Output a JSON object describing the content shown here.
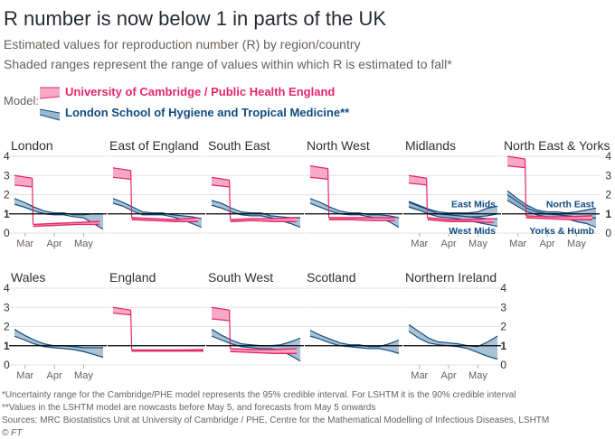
{
  "header": {
    "title": "R number is now below 1 in parts of the UK",
    "subtitle1": "Estimated values for reproduction number (R) by region/country",
    "subtitle2": "Shaded ranges represent the range of values within which R is estimated to fall*"
  },
  "legend": {
    "label": "Model:",
    "items": [
      {
        "name": "University of Cambridge / Public Health England",
        "color": "#e5266b",
        "fill": "#f7a8c4"
      },
      {
        "name": "London School of Hygiene and Tropical Medicine**",
        "color": "#0f4c81",
        "fill": "#9cb7cc"
      }
    ]
  },
  "chart_data": {
    "type": "line",
    "y_ticks": [
      0,
      1,
      2,
      3,
      4
    ],
    "ylim": [
      0,
      4
    ],
    "reference_line": 1,
    "x_ticks": [
      "Mar",
      "Apr",
      "May"
    ],
    "panels": [
      {
        "name": "London",
        "lshtm": [
          [
            1.5,
            1.8
          ],
          [
            1.35,
            1.6
          ],
          [
            1.15,
            1.35
          ],
          [
            1.0,
            1.15
          ],
          [
            0.95,
            1.05
          ],
          [
            0.95,
            1.05
          ],
          [
            0.85,
            0.95
          ],
          [
            0.8,
            0.95
          ],
          [
            0.5,
            1.0
          ],
          [
            0.2,
            1.0
          ]
        ],
        "cam": {
          "pre": [
            2.5,
            3.0
          ],
          "post": [
            [
              0.35,
              0.45
            ],
            [
              0.4,
              0.5
            ],
            [
              0.45,
              0.55
            ],
            [
              0.45,
              0.6
            ]
          ]
        }
      },
      {
        "name": "East of England",
        "lshtm": [
          [
            1.55,
            1.8
          ],
          [
            1.4,
            1.6
          ],
          [
            1.15,
            1.35
          ],
          [
            0.95,
            1.1
          ],
          [
            0.95,
            1.05
          ],
          [
            0.95,
            1.05
          ],
          [
            0.85,
            0.95
          ],
          [
            0.7,
            0.9
          ],
          [
            0.5,
            0.85
          ],
          [
            0.3,
            0.75
          ]
        ],
        "cam": {
          "pre": [
            2.9,
            3.4
          ],
          "post": [
            [
              0.7,
              0.8
            ],
            [
              0.65,
              0.75
            ],
            [
              0.6,
              0.7
            ],
            [
              0.6,
              0.8
            ]
          ]
        }
      },
      {
        "name": "South East",
        "lshtm": [
          [
            1.45,
            1.7
          ],
          [
            1.3,
            1.55
          ],
          [
            1.1,
            1.3
          ],
          [
            0.95,
            1.1
          ],
          [
            0.9,
            1.05
          ],
          [
            0.9,
            1.05
          ],
          [
            0.8,
            0.9
          ],
          [
            0.65,
            0.85
          ],
          [
            0.5,
            0.8
          ],
          [
            0.3,
            0.8
          ]
        ],
        "cam": {
          "pre": [
            2.5,
            2.9
          ],
          "post": [
            [
              0.6,
              0.7
            ],
            [
              0.65,
              0.75
            ],
            [
              0.6,
              0.75
            ],
            [
              0.6,
              0.8
            ]
          ]
        }
      },
      {
        "name": "North West",
        "lshtm": [
          [
            1.55,
            1.8
          ],
          [
            1.35,
            1.6
          ],
          [
            1.15,
            1.35
          ],
          [
            1.0,
            1.15
          ],
          [
            0.95,
            1.05
          ],
          [
            0.95,
            1.05
          ],
          [
            0.85,
            0.95
          ],
          [
            0.75,
            0.95
          ],
          [
            0.6,
            0.9
          ],
          [
            0.3,
            0.8
          ]
        ],
        "cam": {
          "pre": [
            2.9,
            3.5
          ],
          "post": [
            [
              0.7,
              0.8
            ],
            [
              0.7,
              0.8
            ],
            [
              0.65,
              0.8
            ],
            [
              0.65,
              0.8
            ]
          ]
        }
      },
      {
        "name": "Midlands",
        "lshtm": [
          [
            1.4,
            1.65
          ],
          [
            1.25,
            1.45
          ],
          [
            1.05,
            1.25
          ],
          [
            0.95,
            1.1
          ],
          [
            0.9,
            1.05
          ],
          [
            0.9,
            1.05
          ],
          [
            0.85,
            1.05
          ],
          [
            0.85,
            1.1
          ],
          [
            0.9,
            1.3
          ],
          [
            1.0,
            1.4
          ]
        ],
        "lshtm2": [
          [
            1.35,
            1.6
          ],
          [
            1.2,
            1.4
          ],
          [
            1.0,
            1.2
          ],
          [
            0.85,
            1.0
          ],
          [
            0.8,
            0.95
          ],
          [
            0.75,
            0.9
          ],
          [
            0.65,
            0.85
          ],
          [
            0.55,
            0.8
          ],
          [
            0.45,
            0.75
          ],
          [
            0.35,
            0.75
          ]
        ],
        "cam": {
          "pre": [
            2.6,
            3.0
          ],
          "post": [
            [
              0.7,
              0.8
            ],
            [
              0.6,
              0.7
            ],
            [
              0.6,
              0.7
            ],
            [
              0.55,
              0.75
            ]
          ]
        },
        "annotations": [
          "East Mids",
          "West Mids"
        ]
      },
      {
        "name": "North East & Yorks",
        "lshtm": [
          [
            1.8,
            2.2
          ],
          [
            1.5,
            1.8
          ],
          [
            1.2,
            1.45
          ],
          [
            1.05,
            1.2
          ],
          [
            0.95,
            1.1
          ],
          [
            0.95,
            1.1
          ],
          [
            0.9,
            1.05
          ],
          [
            0.85,
            1.1
          ],
          [
            0.8,
            1.2
          ],
          [
            0.7,
            1.3
          ]
        ],
        "lshtm2": [
          [
            1.7,
            2.0
          ],
          [
            1.4,
            1.65
          ],
          [
            1.1,
            1.3
          ],
          [
            0.95,
            1.1
          ],
          [
            0.85,
            1.0
          ],
          [
            0.8,
            0.95
          ],
          [
            0.75,
            0.9
          ],
          [
            0.6,
            0.85
          ],
          [
            0.5,
            0.8
          ],
          [
            0.3,
            0.8
          ]
        ],
        "cam": {
          "pre": [
            3.5,
            4.0
          ],
          "post": [
            [
              0.8,
              0.9
            ],
            [
              0.75,
              0.85
            ],
            [
              0.7,
              0.85
            ],
            [
              0.7,
              0.9
            ]
          ]
        },
        "annotations": [
          "North East",
          "Yorks & Humb"
        ]
      },
      {
        "name": "Wales",
        "lshtm": [
          [
            1.5,
            1.85
          ],
          [
            1.3,
            1.55
          ],
          [
            1.1,
            1.3
          ],
          [
            0.95,
            1.1
          ],
          [
            0.9,
            1.0
          ],
          [
            0.85,
            1.0
          ],
          [
            0.8,
            0.95
          ],
          [
            0.7,
            0.9
          ],
          [
            0.55,
            0.9
          ],
          [
            0.4,
            0.9
          ]
        ],
        "cam": null
      },
      {
        "name": "England",
        "lshtm": null,
        "cam": {
          "pre": [
            2.7,
            3.0
          ],
          "post": [
            [
              0.72,
              0.78
            ],
            [
              0.72,
              0.78
            ],
            [
              0.72,
              0.78
            ],
            [
              0.72,
              0.8
            ]
          ]
        }
      },
      {
        "name": "South West",
        "lshtm": [
          [
            1.5,
            1.85
          ],
          [
            1.3,
            1.55
          ],
          [
            1.1,
            1.3
          ],
          [
            0.95,
            1.1
          ],
          [
            0.9,
            1.05
          ],
          [
            0.85,
            1.0
          ],
          [
            0.85,
            1.0
          ],
          [
            0.75,
            1.05
          ],
          [
            0.5,
            1.2
          ],
          [
            0.2,
            1.4
          ]
        ],
        "cam": {
          "pre": [
            2.4,
            3.0
          ],
          "post": [
            [
              0.7,
              0.85
            ],
            [
              0.65,
              0.8
            ],
            [
              0.6,
              0.8
            ],
            [
              0.6,
              0.85
            ]
          ]
        }
      },
      {
        "name": "Scotland",
        "lshtm": [
          [
            1.5,
            1.8
          ],
          [
            1.35,
            1.55
          ],
          [
            1.15,
            1.35
          ],
          [
            1.0,
            1.15
          ],
          [
            0.95,
            1.05
          ],
          [
            0.9,
            1.05
          ],
          [
            0.85,
            0.95
          ],
          [
            0.85,
            0.95
          ],
          [
            0.75,
            1.1
          ],
          [
            0.6,
            1.3
          ]
        ],
        "cam": null
      },
      {
        "name": "Northern Ireland",
        "lshtm": [
          [
            1.75,
            2.1
          ],
          [
            1.4,
            1.75
          ],
          [
            1.15,
            1.4
          ],
          [
            1.05,
            1.2
          ],
          [
            1.0,
            1.15
          ],
          [
            0.95,
            1.1
          ],
          [
            0.85,
            1.0
          ],
          [
            0.65,
            0.95
          ],
          [
            0.45,
            1.2
          ],
          [
            0.3,
            1.5
          ]
        ],
        "cam": null
      }
    ]
  },
  "footnotes": [
    "*Uncertainty range for the Cambridge/PHE model represents the 95% credible interval. For LSHTM it is the 90% credible interval",
    "**Values in the LSHTM model are nowcasts before May 5, and forecasts from May 5 onwards",
    "Sources: MRC Biostatistics Unit at University of Cambridge / PHE, Centre for the Mathematical Modelling of Infectious Diseases, LSHTM",
    "© FT"
  ]
}
